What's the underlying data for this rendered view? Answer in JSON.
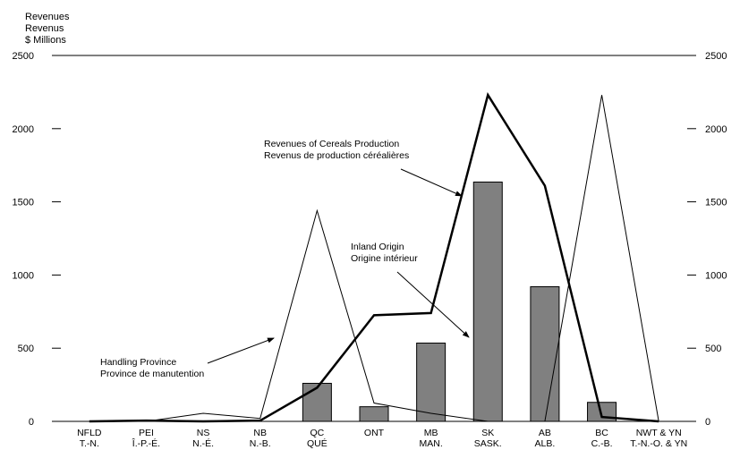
{
  "chart_data": {
    "type": "bar",
    "ylabel_lines": [
      "Revenues",
      "Revenus",
      "$ Millions"
    ],
    "ylim": [
      0,
      2500
    ],
    "yticks": [
      0,
      500,
      1000,
      1500,
      2000,
      2500
    ],
    "grid": false,
    "categories": [
      [
        "NFLD",
        "T.-N."
      ],
      [
        "PEI",
        "Î.-P.-É."
      ],
      [
        "NS",
        "N.-É."
      ],
      [
        "NB",
        "N.-B."
      ],
      [
        "QC",
        "QUÉ"
      ],
      [
        "ONT",
        ""
      ],
      [
        "MB",
        "MAN."
      ],
      [
        "SK",
        "SASK."
      ],
      [
        "AB",
        "ALB."
      ],
      [
        "BC",
        "C.-B."
      ],
      [
        "NWT & YN",
        "T.-N.-O. & YN"
      ]
    ],
    "series": [
      {
        "key": "inland_origin",
        "kind": "bar",
        "color": "#808080",
        "values": [
          0,
          0,
          0,
          0,
          260,
          100,
          535,
          1635,
          920,
          130,
          0
        ]
      },
      {
        "key": "cereals_production",
        "kind": "line",
        "color": "#000000",
        "width": 2.5,
        "values": [
          0,
          5,
          0,
          5,
          230,
          725,
          740,
          2230,
          1610,
          30,
          0
        ]
      },
      {
        "key": "handling_province",
        "kind": "line",
        "color": "#000000",
        "width": 1,
        "values": [
          0,
          0,
          55,
          20,
          1440,
          125,
          55,
          0,
          0,
          2230,
          0
        ]
      }
    ],
    "annotations": [
      {
        "lines": [
          "Revenues of Cereals Production",
          "Revenus de production céréalières"
        ],
        "target": "cereals_production"
      },
      {
        "lines": [
          "Inland Origin",
          "Origine intérieur"
        ],
        "target": "inland_origin"
      },
      {
        "lines": [
          "Handling Province",
          "Province de manutention"
        ],
        "target": "handling_province"
      }
    ]
  }
}
